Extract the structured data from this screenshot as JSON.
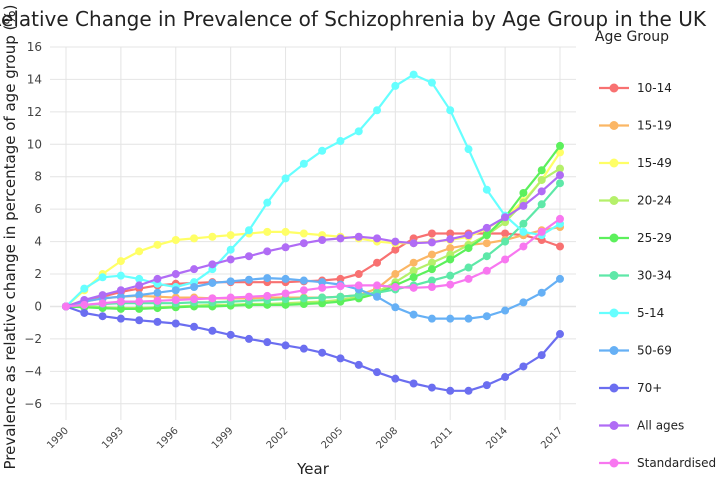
{
  "chart_data": {
    "type": "line",
    "title": "Relative Change in Prevalence of Schizophrenia by Age Group in the UK",
    "xlabel": "Year",
    "ylabel": "Prevalence as relative change in percentage of age group (%)",
    "legend_title": "Age Group",
    "legend_position": "right",
    "grid": true,
    "xlim": [
      1990,
      2017
    ],
    "ylim": [
      -7,
      16
    ],
    "yticks": [
      "16",
      "14",
      "12",
      "10",
      "8",
      "6",
      "4",
      "2",
      "0",
      "−2",
      "−4",
      "−6"
    ],
    "ytick_values": [
      16,
      14,
      12,
      10,
      8,
      6,
      4,
      2,
      0,
      -2,
      -4,
      -6
    ],
    "xticks": [
      "1990",
      "1993",
      "1996",
      "1999",
      "2002",
      "2005",
      "2008",
      "2011",
      "2014",
      "2017"
    ],
    "xtick_values": [
      1990,
      1993,
      1996,
      1999,
      2002,
      2005,
      2008,
      2011,
      2014,
      2017
    ],
    "x": [
      1990,
      1991,
      1992,
      1993,
      1994,
      1995,
      1996,
      1997,
      1998,
      1999,
      2000,
      2001,
      2002,
      2003,
      2004,
      2005,
      2006,
      2007,
      2008,
      2009,
      2010,
      2011,
      2012,
      2013,
      2014,
      2015,
      2016,
      2017
    ],
    "series": [
      {
        "name": "10-14",
        "color": "#f87171",
        "values": [
          0,
          0.3,
          0.6,
          0.9,
          1.1,
          1.3,
          1.4,
          1.45,
          1.5,
          1.5,
          1.5,
          1.5,
          1.5,
          1.55,
          1.6,
          1.7,
          2.0,
          2.7,
          3.5,
          4.2,
          4.5,
          4.5,
          4.5,
          4.5,
          4.5,
          4.4,
          4.1,
          3.7
        ]
      },
      {
        "name": "15-19",
        "color": "#fbb665",
        "values": [
          0,
          0.3,
          0.5,
          0.6,
          0.65,
          0.6,
          0.55,
          0.55,
          0.5,
          0.5,
          0.5,
          0.55,
          0.55,
          0.55,
          0.55,
          0.6,
          0.7,
          1.1,
          2.0,
          2.7,
          3.2,
          3.6,
          3.8,
          3.9,
          4.1,
          4.4,
          4.7,
          4.9
        ]
      },
      {
        "name": "15-49",
        "color": "#ffff66",
        "values": [
          0,
          1.0,
          2.0,
          2.8,
          3.4,
          3.8,
          4.1,
          4.2,
          4.3,
          4.4,
          4.5,
          4.6,
          4.6,
          4.5,
          4.4,
          4.3,
          4.2,
          4.0,
          3.9,
          3.9,
          4.0,
          4.1,
          4.3,
          4.8,
          5.5,
          6.5,
          7.8,
          9.5
        ]
      },
      {
        "name": "20-24",
        "color": "#b5f06a",
        "values": [
          0,
          0.0,
          -0.05,
          -0.1,
          -0.1,
          -0.05,
          0.0,
          0.05,
          0.1,
          0.1,
          0.15,
          0.15,
          0.2,
          0.25,
          0.3,
          0.4,
          0.6,
          0.9,
          1.5,
          2.2,
          2.7,
          3.2,
          3.8,
          4.4,
          5.2,
          6.4,
          7.8,
          8.5
        ]
      },
      {
        "name": "25-29",
        "color": "#5cf05c",
        "values": [
          0,
          -0.05,
          -0.1,
          -0.15,
          -0.15,
          -0.1,
          -0.05,
          0.0,
          0.0,
          0.05,
          0.1,
          0.1,
          0.1,
          0.15,
          0.2,
          0.3,
          0.5,
          0.8,
          1.3,
          1.8,
          2.3,
          2.9,
          3.6,
          4.4,
          5.5,
          7.0,
          8.4,
          9.9
        ]
      },
      {
        "name": "30-34",
        "color": "#5ee8a8",
        "values": [
          0,
          0.1,
          0.15,
          0.2,
          0.2,
          0.2,
          0.2,
          0.25,
          0.25,
          0.3,
          0.35,
          0.4,
          0.45,
          0.5,
          0.55,
          0.6,
          0.7,
          0.85,
          1.05,
          1.3,
          1.6,
          1.9,
          2.4,
          3.1,
          4.0,
          5.1,
          6.3,
          7.6
        ]
      },
      {
        "name": "5-14",
        "color": "#66ffff",
        "values": [
          0,
          1.1,
          1.8,
          1.9,
          1.7,
          1.4,
          1.2,
          1.5,
          2.3,
          3.5,
          4.7,
          6.4,
          7.9,
          8.8,
          9.6,
          10.2,
          10.8,
          12.1,
          13.6,
          14.3,
          13.8,
          12.1,
          9.7,
          7.2,
          5.6,
          4.6,
          4.4,
          5.1
        ]
      },
      {
        "name": "50-69",
        "color": "#66b0f5",
        "values": [
          0,
          0.3,
          0.5,
          0.6,
          0.7,
          0.85,
          1.0,
          1.2,
          1.45,
          1.55,
          1.65,
          1.75,
          1.7,
          1.6,
          1.5,
          1.35,
          1.05,
          0.6,
          -0.05,
          -0.5,
          -0.75,
          -0.75,
          -0.75,
          -0.6,
          -0.25,
          0.25,
          0.85,
          1.7
        ]
      },
      {
        "name": "70+",
        "color": "#6b6ef0",
        "values": [
          0,
          -0.4,
          -0.6,
          -0.75,
          -0.85,
          -0.95,
          -1.05,
          -1.25,
          -1.5,
          -1.75,
          -2.0,
          -2.2,
          -2.4,
          -2.6,
          -2.85,
          -3.2,
          -3.6,
          -4.05,
          -4.45,
          -4.75,
          -5.0,
          -5.2,
          -5.2,
          -4.85,
          -4.35,
          -3.7,
          -3.0,
          -1.7
        ]
      },
      {
        "name": "All ages",
        "color": "#b06cf5",
        "values": [
          0,
          0.4,
          0.7,
          1.0,
          1.3,
          1.7,
          2.0,
          2.3,
          2.6,
          2.9,
          3.1,
          3.4,
          3.65,
          3.9,
          4.1,
          4.2,
          4.3,
          4.2,
          4.0,
          3.9,
          3.95,
          4.15,
          4.4,
          4.85,
          5.5,
          6.2,
          7.1,
          8.1
        ]
      },
      {
        "name": "Standardised",
        "color": "#f877f0",
        "values": [
          0,
          0.1,
          0.2,
          0.3,
          0.3,
          0.35,
          0.4,
          0.45,
          0.5,
          0.55,
          0.6,
          0.65,
          0.8,
          1.0,
          1.15,
          1.25,
          1.3,
          1.3,
          1.2,
          1.15,
          1.2,
          1.35,
          1.7,
          2.2,
          2.9,
          3.7,
          4.6,
          5.4
        ]
      }
    ]
  }
}
